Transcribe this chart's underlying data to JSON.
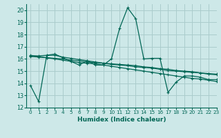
{
  "xlabel": "Humidex (Indice chaleur)",
  "ylabel": "",
  "background_color": "#cde8e8",
  "grid_color": "#aacccc",
  "line_color": "#006655",
  "xlim": [
    -0.5,
    23
  ],
  "ylim": [
    12,
    20.5
  ],
  "xticks": [
    0,
    1,
    2,
    3,
    4,
    5,
    6,
    7,
    8,
    9,
    10,
    11,
    12,
    13,
    14,
    15,
    16,
    17,
    18,
    19,
    20,
    21,
    22,
    23
  ],
  "yticks": [
    12,
    13,
    14,
    15,
    16,
    17,
    18,
    19,
    20
  ],
  "series": [
    [
      13.8,
      12.5,
      16.3,
      16.4,
      16.1,
      15.8,
      15.5,
      15.85,
      15.5,
      15.5,
      16.0,
      18.5,
      20.2,
      19.3,
      16.0,
      16.05,
      16.05,
      13.25,
      14.1,
      14.6,
      14.6,
      14.5,
      14.3,
      14.3
    ],
    [
      16.25,
      16.25,
      16.3,
      16.3,
      16.15,
      16.05,
      15.95,
      15.85,
      15.75,
      15.65,
      15.6,
      15.55,
      15.5,
      15.45,
      15.35,
      15.3,
      15.2,
      15.15,
      15.05,
      15.0,
      14.95,
      14.85,
      14.8,
      14.75
    ],
    [
      16.2,
      16.15,
      16.1,
      16.05,
      16.0,
      15.9,
      15.85,
      15.75,
      15.7,
      15.65,
      15.55,
      15.5,
      15.45,
      15.35,
      15.3,
      15.25,
      15.15,
      15.05,
      15.0,
      14.95,
      14.9,
      14.85,
      14.75,
      14.7
    ],
    [
      16.3,
      16.2,
      16.1,
      16.0,
      15.9,
      15.8,
      15.7,
      15.65,
      15.6,
      15.5,
      15.4,
      15.3,
      15.2,
      15.1,
      15.0,
      14.9,
      14.8,
      14.7,
      14.6,
      14.5,
      14.4,
      14.35,
      14.25,
      14.15
    ]
  ]
}
